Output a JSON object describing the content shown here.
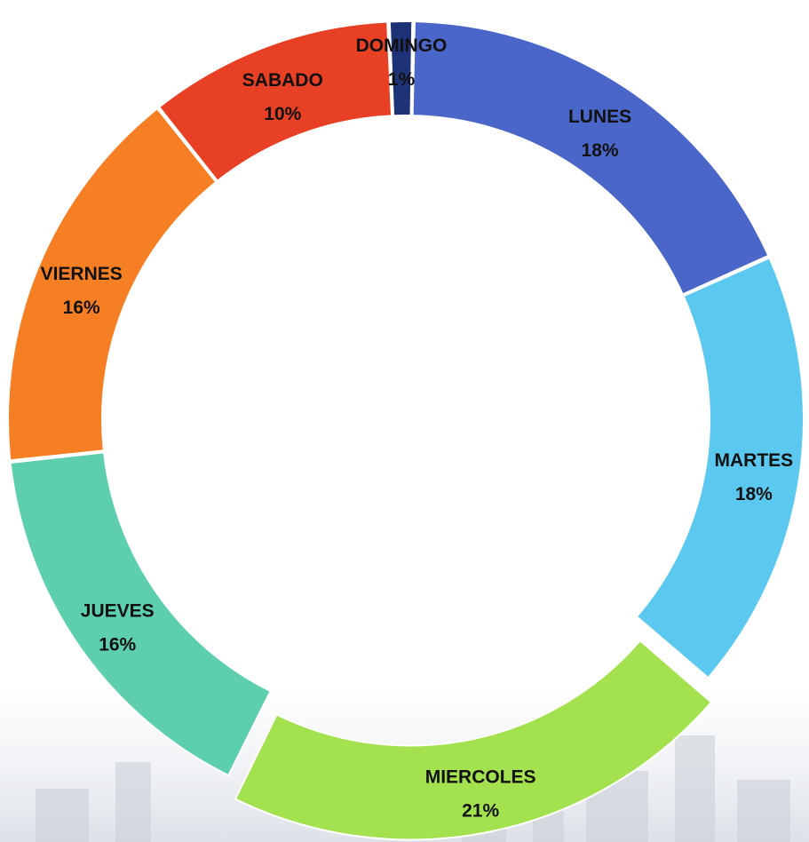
{
  "chart_data": {
    "type": "pie",
    "style": "doughnut",
    "categories": [
      "LUNES",
      "MARTES",
      "MIERCOLES",
      "JUEVES",
      "VIERNES",
      "SABADO",
      "DOMINGO"
    ],
    "values": [
      18,
      18,
      21,
      16,
      16,
      10,
      1
    ],
    "value_labels": [
      "18%",
      "18%",
      "21%",
      "16%",
      "16%",
      "10%",
      "1%"
    ],
    "unit": "%",
    "exploded": [
      "MIERCOLES"
    ],
    "colors": [
      "#4a66c8",
      "#5bc8ef",
      "#a4e14f",
      "#5ecfae",
      "#f67e23",
      "#e74025",
      "#1e3278"
    ],
    "legend": "none",
    "title": ""
  }
}
